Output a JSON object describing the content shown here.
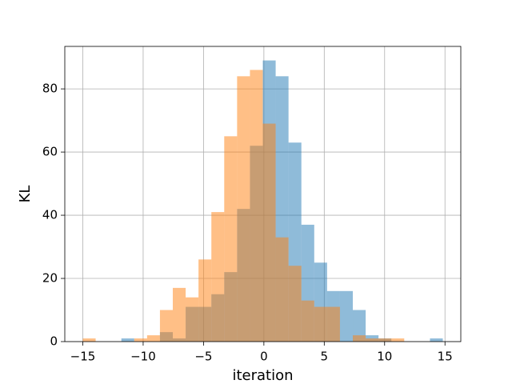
{
  "chart_data": {
    "type": "histogram",
    "xlabel": "iteration",
    "ylabel": "KL",
    "xlim": [
      -16.49,
      16.31
    ],
    "ylim": [
      0,
      93.45
    ],
    "xticks": [
      {
        "value": -15,
        "label": "−15"
      },
      {
        "value": -10,
        "label": "−10"
      },
      {
        "value": -5,
        "label": "−5"
      },
      0,
      5,
      10,
      15
    ],
    "yticks": [
      0,
      20,
      40,
      60,
      80
    ],
    "grid": true,
    "alpha": 0.5,
    "series": [
      {
        "color": "#1f77b4",
        "bins": [
          -11.805,
          -10.74,
          -9.675,
          -8.61,
          -7.545,
          -6.48,
          -5.415,
          -4.35,
          -3.285,
          -2.22,
          -1.155,
          -0.09,
          0.975,
          2.04,
          3.105,
          4.17,
          5.235,
          6.3,
          7.365,
          8.43,
          9.495,
          10.56,
          11.625,
          12.69,
          13.755,
          14.82
        ],
        "values": [
          1,
          0,
          0,
          3,
          1,
          11,
          11,
          15,
          22,
          42,
          62,
          89,
          84,
          63,
          37,
          25,
          16,
          16,
          10,
          2,
          1,
          0,
          0,
          0,
          1
        ]
      },
      {
        "color": "#ff7f0e",
        "bins": [
          -15,
          -13.935,
          -12.87,
          -11.805,
          -10.74,
          -9.675,
          -8.61,
          -7.545,
          -6.48,
          -5.415,
          -4.35,
          -3.285,
          -2.22,
          -1.155,
          -0.09,
          0.975,
          2.04,
          3.105,
          4.17,
          5.235,
          6.3,
          7.365,
          8.43,
          9.495,
          10.56,
          11.625
        ],
        "values": [
          1,
          0,
          0,
          0,
          1,
          2,
          10,
          17,
          14,
          26,
          41,
          65,
          84,
          86,
          69,
          33,
          24,
          13,
          11,
          11,
          0,
          2,
          1,
          1,
          1
        ]
      }
    ]
  }
}
